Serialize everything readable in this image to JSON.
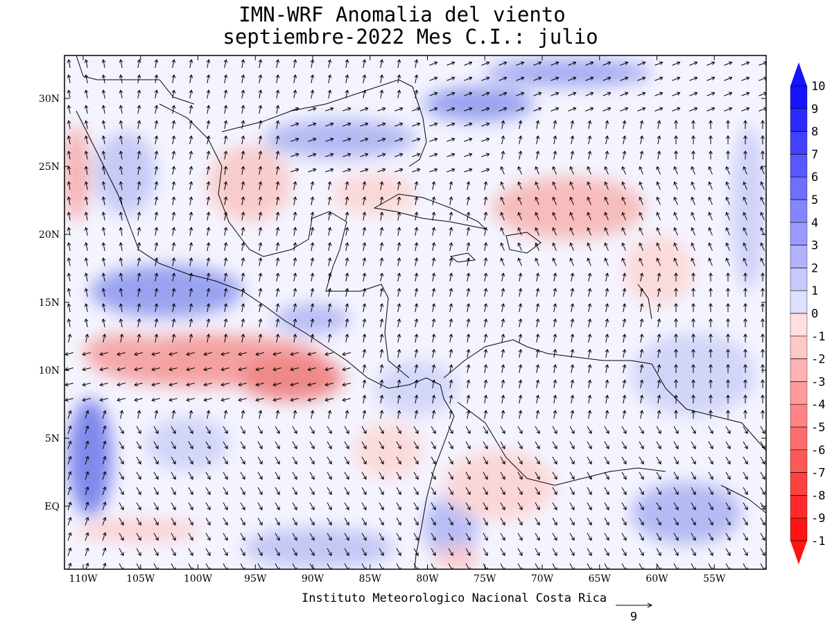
{
  "title_line1": "IMN-WRF Anomalia del viento",
  "title_line2": "septiembre-2022 Mes C.I.: julio",
  "credit": "Instituto Meteorologico Nacional Costa Rica",
  "reference_vector_label": "9",
  "longitude_labels": [
    "110W",
    "105W",
    "100W",
    "95W",
    "90W",
    "85W",
    "80W",
    "75W",
    "70W",
    "65W",
    "60W",
    "55W"
  ],
  "latitude_labels": [
    "30N",
    "25N",
    "20N",
    "15N",
    "10N",
    "5N",
    "EQ"
  ],
  "colorbar_labels": [
    "10",
    "9",
    "8",
    "7",
    "6",
    "5",
    "4",
    "3",
    "2",
    "1",
    "0",
    "-1",
    "-2",
    "-3",
    "-4",
    "-5",
    "-6",
    "-7",
    "-8",
    "-9",
    "-1"
  ],
  "colors": {
    "positive_max": "#1414ff",
    "negative_max": "#ff1414",
    "neutral": "#f5f5ff",
    "coast": "#000000"
  }
}
